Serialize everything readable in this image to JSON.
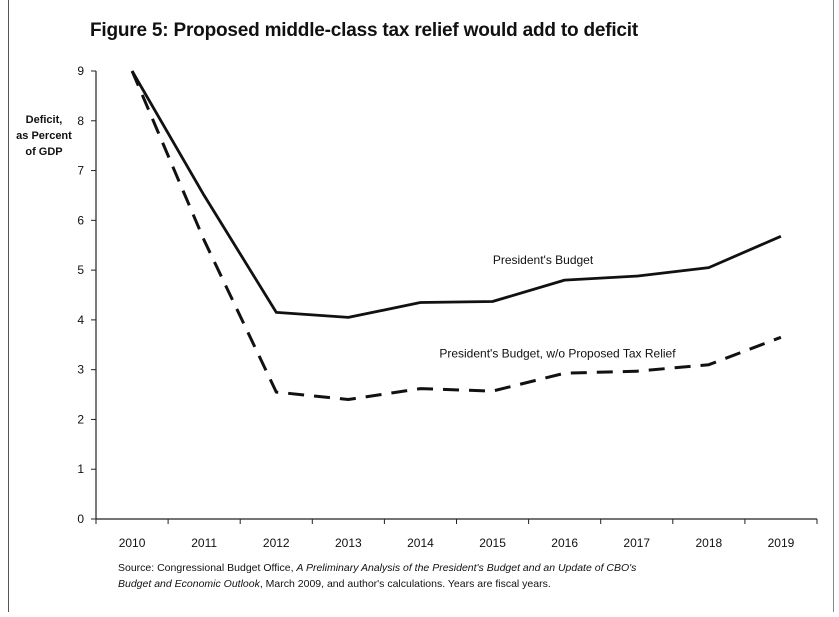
{
  "title": "Figure 5: Proposed middle-class tax relief would add to deficit",
  "ylabel_lines": [
    "Deficit,",
    "as Percent",
    "of GDP"
  ],
  "source": {
    "prefix": "Source: Congressional Budget Office, ",
    "italic1": "A Preliminary Analysis of the President's Budget and an Update of CBO's",
    "italic2": "Budget and Economic Outlook",
    "suffix": ", March 2009,  and author's calculations.  Years are fiscal years."
  },
  "chart_data": {
    "type": "line",
    "title": "Figure 5: Proposed middle-class tax relief would add to deficit",
    "xlabel": "",
    "ylabel": "Deficit, as Percent of GDP",
    "x": [
      "2010",
      "2011",
      "2012",
      "2013",
      "2014",
      "2015",
      "2016",
      "2017",
      "2018",
      "2019"
    ],
    "yticks": [
      "0",
      "1",
      "2",
      "3",
      "4",
      "5",
      "6",
      "7",
      "8",
      "9"
    ],
    "ylim": [
      0,
      9
    ],
    "grid": false,
    "legend": "none",
    "series": [
      {
        "name": "President's Budget",
        "values": [
          9.0,
          6.5,
          4.15,
          4.05,
          4.35,
          4.37,
          4.8,
          4.88,
          5.05,
          5.68
        ],
        "style": "solid",
        "color": "#111111"
      },
      {
        "name": "President's Budget, w/o Proposed Tax Relief",
        "values": [
          9.0,
          5.6,
          2.55,
          2.4,
          2.62,
          2.57,
          2.93,
          2.97,
          3.1,
          3.65
        ],
        "style": "dashed",
        "color": "#111111"
      }
    ]
  }
}
